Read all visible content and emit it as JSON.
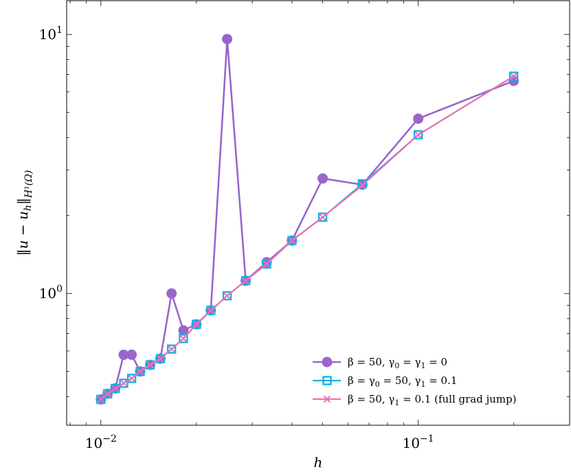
{
  "chart_data": {
    "type": "line",
    "xscale": "log",
    "yscale": "log",
    "xlim": [
      0.0078,
      0.3
    ],
    "ylim": [
      0.31,
      13.5
    ],
    "xlabel": "h",
    "ylabel": "‖u − u_h‖_{H¹(Ω)}",
    "xticks": [
      {
        "value": 0.01,
        "base": "10",
        "exp": "−2"
      },
      {
        "value": 0.1,
        "base": "10",
        "exp": "−1"
      }
    ],
    "yticks": [
      {
        "value": 1,
        "base": "10",
        "exp": "0"
      },
      {
        "value": 10,
        "base": "10",
        "exp": "1"
      }
    ],
    "grid": false,
    "legend_position": "bottom-right",
    "series": [
      {
        "name": "β = 50, γ0 = γ1 = 0",
        "color": "#9966cc",
        "marker": "circle",
        "x": [
          0.01,
          0.0105,
          0.0111,
          0.0118,
          0.0125,
          0.0133,
          0.0143,
          0.0154,
          0.0167,
          0.0182,
          0.02,
          0.0222,
          0.025,
          0.0286,
          0.0333,
          0.04,
          0.05,
          0.0667,
          0.1,
          0.2
        ],
        "y": [
          0.39,
          0.41,
          0.43,
          0.58,
          0.58,
          0.5,
          0.53,
          0.56,
          1.0,
          0.72,
          0.76,
          0.86,
          9.6,
          1.12,
          1.32,
          1.6,
          2.78,
          2.63,
          4.73,
          6.62
        ]
      },
      {
        "name": "β = γ0 = 50, γ1 = 0.1",
        "color": "#11b2e8",
        "marker": "square",
        "x": [
          0.01,
          0.0105,
          0.0111,
          0.0118,
          0.0125,
          0.0133,
          0.0143,
          0.0154,
          0.0167,
          0.0182,
          0.02,
          0.0222,
          0.025,
          0.0286,
          0.0333,
          0.04,
          0.05,
          0.0667,
          0.1,
          0.2
        ],
        "y": [
          0.39,
          0.41,
          0.43,
          0.45,
          0.47,
          0.5,
          0.53,
          0.56,
          0.61,
          0.67,
          0.76,
          0.86,
          0.98,
          1.12,
          1.3,
          1.6,
          1.97,
          2.65,
          4.1,
          6.9
        ]
      },
      {
        "name": "β = 50, γ1 = 0.1 (full grad jump)",
        "color": "#ee6fb0",
        "marker": "cross",
        "x": [
          0.01,
          0.0105,
          0.0111,
          0.0118,
          0.0125,
          0.0133,
          0.0143,
          0.0154,
          0.0167,
          0.0182,
          0.02,
          0.0222,
          0.025,
          0.0286,
          0.0333,
          0.04,
          0.05,
          0.0667,
          0.1,
          0.2
        ],
        "y": [
          0.39,
          0.41,
          0.43,
          0.45,
          0.47,
          0.5,
          0.53,
          0.56,
          0.61,
          0.67,
          0.76,
          0.86,
          0.98,
          1.12,
          1.3,
          1.6,
          1.97,
          2.62,
          4.1,
          6.9
        ]
      }
    ],
    "legend": [
      {
        "prefix": "β = 50, γ",
        "s1": "0",
        "mid": " = γ",
        "s2": "1",
        "suffix": " = 0"
      },
      {
        "prefix": "β = γ",
        "s1": "0",
        "mid": " = 50, γ",
        "s2": "1",
        "suffix": " = 0.1"
      },
      {
        "prefix": "β = 50, γ",
        "s1": "1",
        "mid": " = 0.1 (full grad jump)",
        "s2": "",
        "suffix": ""
      }
    ]
  }
}
